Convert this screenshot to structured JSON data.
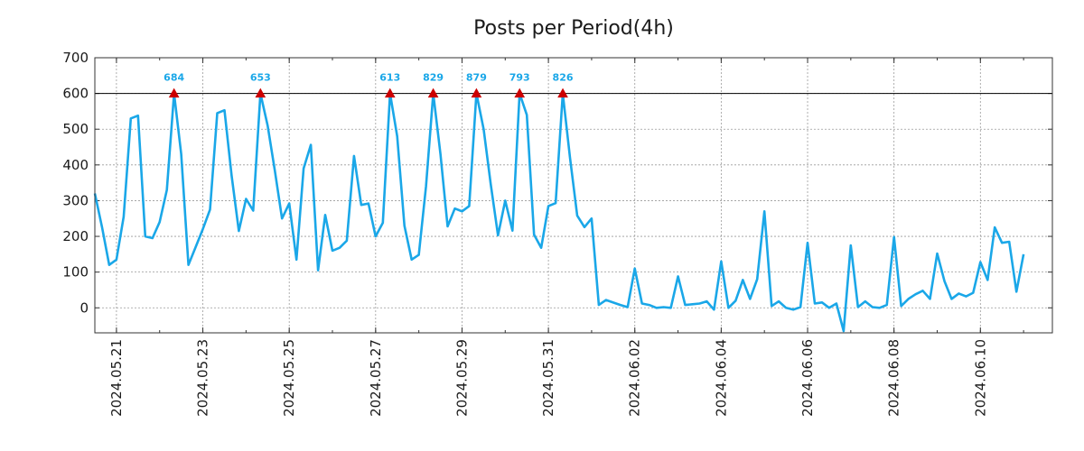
{
  "chart_data": {
    "type": "line",
    "title": "Posts per Period(4h)",
    "xlabel": "",
    "ylabel": "",
    "ylim": [
      -70,
      700
    ],
    "yticks": [
      0,
      100,
      200,
      300,
      400,
      500,
      600,
      700
    ],
    "grid": true,
    "x_start": "2024-05-20T12:00",
    "x_end": "2024-06-11T16:00",
    "xtick_labels": [
      "2024.05.21",
      "2024.05.23",
      "2024.05.25",
      "2024.05.27",
      "2024.05.29",
      "2024.05.31",
      "2024.06.02",
      "2024.06.04",
      "2024.06.06",
      "2024.06.08",
      "2024.06.10"
    ],
    "threshold": {
      "value": 600,
      "color": "#000000"
    },
    "series": [
      {
        "name": "posts",
        "color": "#1aa7e8",
        "points": [
          [
            "2024-05-20T12:00",
            320
          ],
          [
            "2024-05-20T16:00",
            225
          ],
          [
            "2024-05-20T20:00",
            120
          ],
          [
            "2024-05-21T00:00",
            135
          ],
          [
            "2024-05-21T04:00",
            255
          ],
          [
            "2024-05-21T08:00",
            530
          ],
          [
            "2024-05-21T12:00",
            538
          ],
          [
            "2024-05-21T16:00",
            200
          ],
          [
            "2024-05-21T20:00",
            195
          ],
          [
            "2024-05-22T00:00",
            240
          ],
          [
            "2024-05-22T04:00",
            330
          ],
          [
            "2024-05-22T08:00",
            600
          ],
          [
            "2024-05-22T12:00",
            430
          ],
          [
            "2024-05-22T16:00",
            120
          ],
          [
            "2024-05-22T20:00",
            170
          ],
          [
            "2024-05-23T00:00",
            220
          ],
          [
            "2024-05-23T04:00",
            275
          ],
          [
            "2024-05-23T08:00",
            545
          ],
          [
            "2024-05-23T12:00",
            553
          ],
          [
            "2024-05-23T16:00",
            370
          ],
          [
            "2024-05-23T20:00",
            215
          ],
          [
            "2024-05-24T00:00",
            305
          ],
          [
            "2024-05-24T04:00",
            272
          ],
          [
            "2024-05-24T08:00",
            600
          ],
          [
            "2024-05-24T12:00",
            510
          ],
          [
            "2024-05-24T16:00",
            385
          ],
          [
            "2024-05-24T20:00",
            250
          ],
          [
            "2024-05-25T00:00",
            292
          ],
          [
            "2024-05-25T04:00",
            135
          ],
          [
            "2024-05-25T08:00",
            390
          ],
          [
            "2024-05-25T12:00",
            456
          ],
          [
            "2024-05-25T16:00",
            105
          ],
          [
            "2024-05-25T20:00",
            260
          ],
          [
            "2024-05-26T00:00",
            160
          ],
          [
            "2024-05-26T04:00",
            168
          ],
          [
            "2024-05-26T08:00",
            188
          ],
          [
            "2024-05-26T12:00",
            425
          ],
          [
            "2024-05-26T16:00",
            288
          ],
          [
            "2024-05-26T20:00",
            292
          ],
          [
            "2024-05-27T00:00",
            200
          ],
          [
            "2024-05-27T04:00",
            238
          ],
          [
            "2024-05-27T08:00",
            600
          ],
          [
            "2024-05-27T12:00",
            480
          ],
          [
            "2024-05-27T16:00",
            230
          ],
          [
            "2024-05-27T20:00",
            135
          ],
          [
            "2024-05-28T00:00",
            148
          ],
          [
            "2024-05-28T04:00",
            340
          ],
          [
            "2024-05-28T08:00",
            600
          ],
          [
            "2024-05-28T12:00",
            430
          ],
          [
            "2024-05-28T16:00",
            228
          ],
          [
            "2024-05-28T20:00",
            278
          ],
          [
            "2024-05-29T00:00",
            270
          ],
          [
            "2024-05-29T04:00",
            285
          ],
          [
            "2024-05-29T08:00",
            600
          ],
          [
            "2024-05-29T12:00",
            500
          ],
          [
            "2024-05-29T16:00",
            345
          ],
          [
            "2024-05-29T20:00",
            203
          ],
          [
            "2024-05-30T00:00",
            300
          ],
          [
            "2024-05-30T04:00",
            216
          ],
          [
            "2024-05-30T08:00",
            600
          ],
          [
            "2024-05-30T12:00",
            540
          ],
          [
            "2024-05-30T16:00",
            205
          ],
          [
            "2024-05-30T20:00",
            168
          ],
          [
            "2024-05-31T00:00",
            285
          ],
          [
            "2024-05-31T04:00",
            293
          ],
          [
            "2024-05-31T08:00",
            600
          ],
          [
            "2024-05-31T12:00",
            420
          ],
          [
            "2024-05-31T16:00",
            258
          ],
          [
            "2024-05-31T20:00",
            226
          ],
          [
            "2024-06-01T00:00",
            250
          ],
          [
            "2024-06-01T04:00",
            8
          ],
          [
            "2024-06-01T08:00",
            22
          ],
          [
            "2024-06-01T16:00",
            8
          ],
          [
            "2024-06-01T20:00",
            2
          ],
          [
            "2024-06-02T00:00",
            110
          ],
          [
            "2024-06-02T04:00",
            12
          ],
          [
            "2024-06-02T08:00",
            8
          ],
          [
            "2024-06-02T12:00",
            0
          ],
          [
            "2024-06-02T16:00",
            2
          ],
          [
            "2024-06-02T20:00",
            0
          ],
          [
            "2024-06-03T00:00",
            88
          ],
          [
            "2024-06-03T04:00",
            8
          ],
          [
            "2024-06-03T08:00",
            10
          ],
          [
            "2024-06-03T12:00",
            12
          ],
          [
            "2024-06-03T16:00",
            18
          ],
          [
            "2024-06-03T20:00",
            -5
          ],
          [
            "2024-06-04T00:00",
            130
          ],
          [
            "2024-06-04T04:00",
            0
          ],
          [
            "2024-06-04T08:00",
            20
          ],
          [
            "2024-06-04T12:00",
            78
          ],
          [
            "2024-06-04T16:00",
            25
          ],
          [
            "2024-06-04T20:00",
            80
          ],
          [
            "2024-06-05T00:00",
            270
          ],
          [
            "2024-06-05T04:00",
            5
          ],
          [
            "2024-06-05T08:00",
            18
          ],
          [
            "2024-06-05T12:00",
            0
          ],
          [
            "2024-06-05T16:00",
            -5
          ],
          [
            "2024-06-05T20:00",
            2
          ],
          [
            "2024-06-06T00:00",
            182
          ],
          [
            "2024-06-06T04:00",
            12
          ],
          [
            "2024-06-06T08:00",
            15
          ],
          [
            "2024-06-06T12:00",
            0
          ],
          [
            "2024-06-06T16:00",
            12
          ],
          [
            "2024-06-06T20:00",
            -65
          ],
          [
            "2024-06-07T00:00",
            175
          ],
          [
            "2024-06-07T04:00",
            2
          ],
          [
            "2024-06-07T08:00",
            18
          ],
          [
            "2024-06-07T12:00",
            2
          ],
          [
            "2024-06-07T16:00",
            0
          ],
          [
            "2024-06-07T20:00",
            8
          ],
          [
            "2024-06-08T00:00",
            198
          ],
          [
            "2024-06-08T04:00",
            5
          ],
          [
            "2024-06-08T08:00",
            25
          ],
          [
            "2024-06-08T12:00",
            38
          ],
          [
            "2024-06-08T16:00",
            48
          ],
          [
            "2024-06-08T20:00",
            25
          ],
          [
            "2024-06-09T00:00",
            152
          ],
          [
            "2024-06-09T04:00",
            75
          ],
          [
            "2024-06-09T08:00",
            25
          ],
          [
            "2024-06-09T12:00",
            40
          ],
          [
            "2024-06-09T16:00",
            32
          ],
          [
            "2024-06-09T20:00",
            42
          ],
          [
            "2024-06-10T00:00",
            128
          ],
          [
            "2024-06-10T04:00",
            78
          ],
          [
            "2024-06-10T08:00",
            225
          ],
          [
            "2024-06-10T12:00",
            182
          ],
          [
            "2024-06-10T16:00",
            185
          ],
          [
            "2024-06-10T20:00",
            45
          ],
          [
            "2024-06-11T00:00",
            150
          ]
        ]
      }
    ],
    "peaks": [
      {
        "x": "2024-05-22T08:00",
        "value": 684,
        "label": "684"
      },
      {
        "x": "2024-05-24T08:00",
        "value": 653,
        "label": "653"
      },
      {
        "x": "2024-05-27T08:00",
        "value": 613,
        "label": "613"
      },
      {
        "x": "2024-05-28T08:00",
        "value": 829,
        "label": "829"
      },
      {
        "x": "2024-05-29T08:00",
        "value": 879,
        "label": "879"
      },
      {
        "x": "2024-05-30T08:00",
        "value": 793,
        "label": "793"
      },
      {
        "x": "2024-05-31T08:00",
        "value": 826,
        "label": "826"
      }
    ],
    "peak_marker_color": "#cc0000",
    "peak_label_color": "#1aa7e8"
  }
}
